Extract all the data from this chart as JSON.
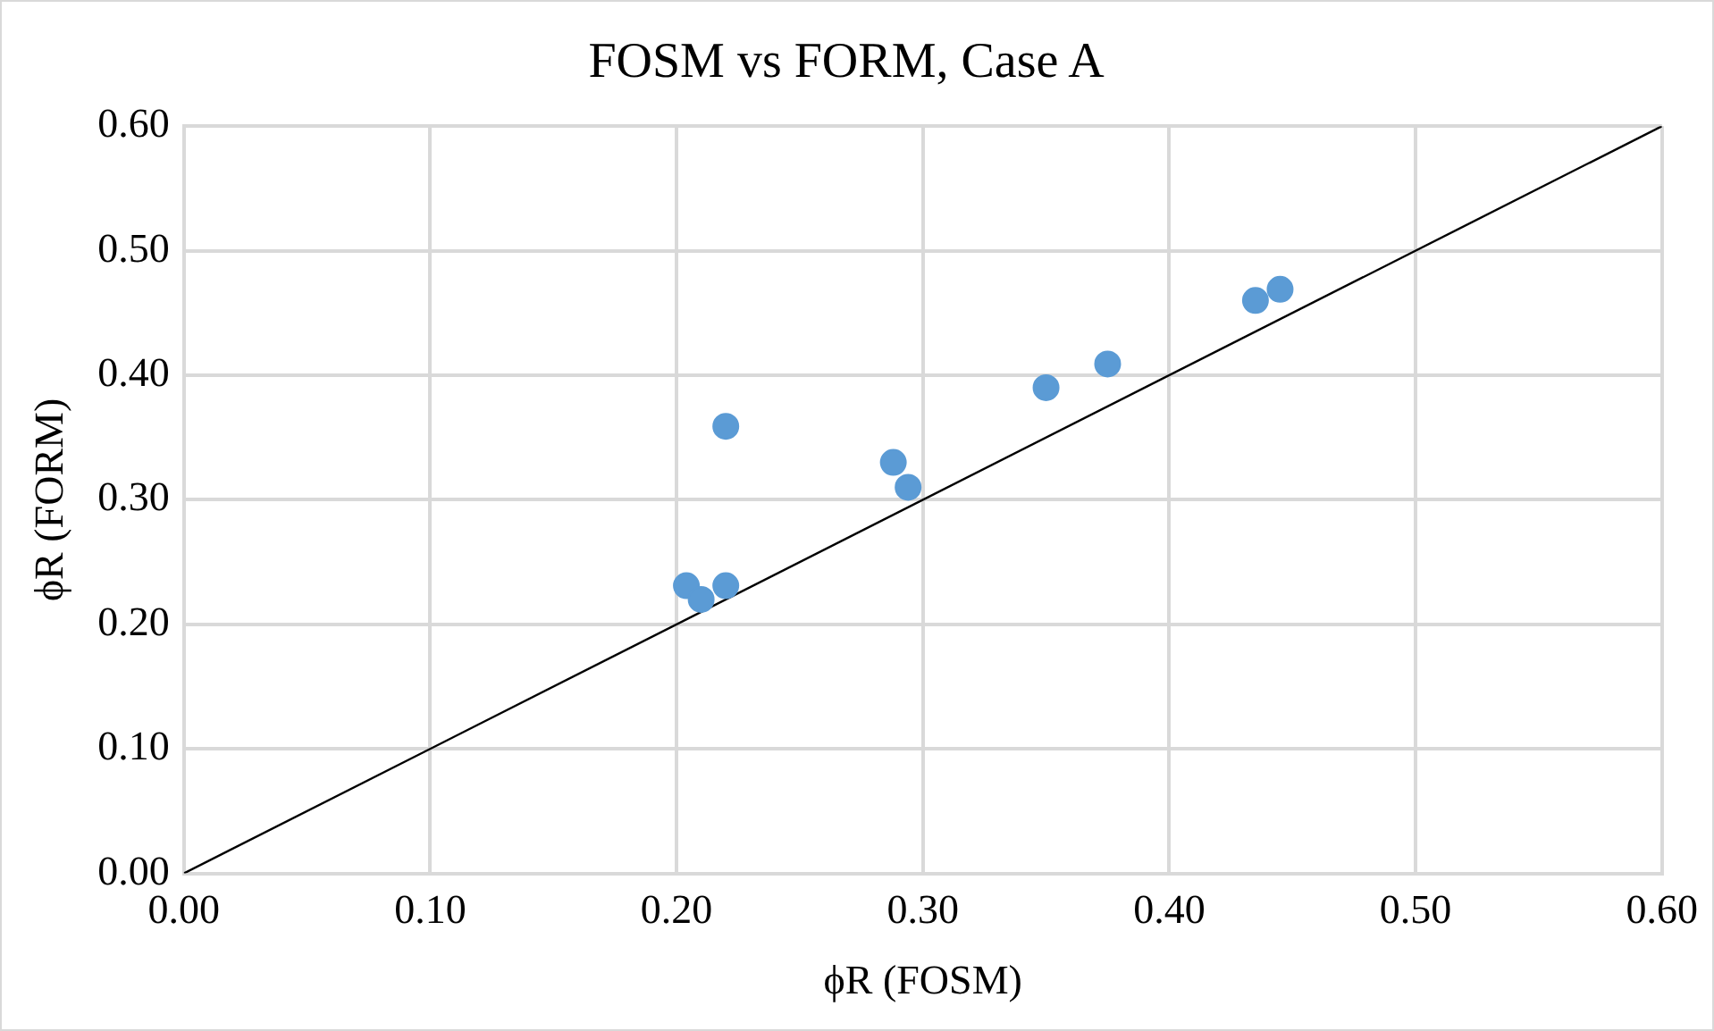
{
  "chart_data": {
    "type": "scatter",
    "title": "FOSM vs FORM, Case A",
    "xlabel": "ϕR (FOSM)",
    "ylabel": "ϕR (FORM)",
    "xlim": [
      0,
      0.6
    ],
    "ylim": [
      0,
      0.6
    ],
    "xticks": [
      {
        "value": 0,
        "label": "0.00"
      },
      {
        "value": 0.1,
        "label": "0.10"
      },
      {
        "value": 0.2,
        "label": "0.20"
      },
      {
        "value": 0.3,
        "label": "0.30"
      },
      {
        "value": 0.4,
        "label": "0.40"
      },
      {
        "value": 0.5,
        "label": "0.50"
      },
      {
        "value": 0.6,
        "label": "0.60"
      }
    ],
    "yticks": [
      {
        "value": 0,
        "label": "0.00"
      },
      {
        "value": 0.1,
        "label": "0.10"
      },
      {
        "value": 0.2,
        "label": "0.20"
      },
      {
        "value": 0.3,
        "label": "0.30"
      },
      {
        "value": 0.4,
        "label": "0.40"
      },
      {
        "value": 0.5,
        "label": "0.50"
      },
      {
        "value": 0.6,
        "label": "0.60"
      }
    ],
    "grid": true,
    "legend": false,
    "marker": "circle",
    "series": [
      {
        "color": "#5b9bd5",
        "x": [
          0.204,
          0.21,
          0.22,
          0.22,
          0.288,
          0.294,
          0.35,
          0.375,
          0.435,
          0.445
        ],
        "values": [
          0.231,
          0.22,
          0.231,
          0.359,
          0.33,
          0.31,
          0.39,
          0.409,
          0.46,
          0.469
        ]
      },
      {
        "type": "line",
        "color": "#000000",
        "marker": "none",
        "x": [
          0,
          0.6
        ],
        "values": [
          0,
          0.6
        ]
      }
    ]
  }
}
